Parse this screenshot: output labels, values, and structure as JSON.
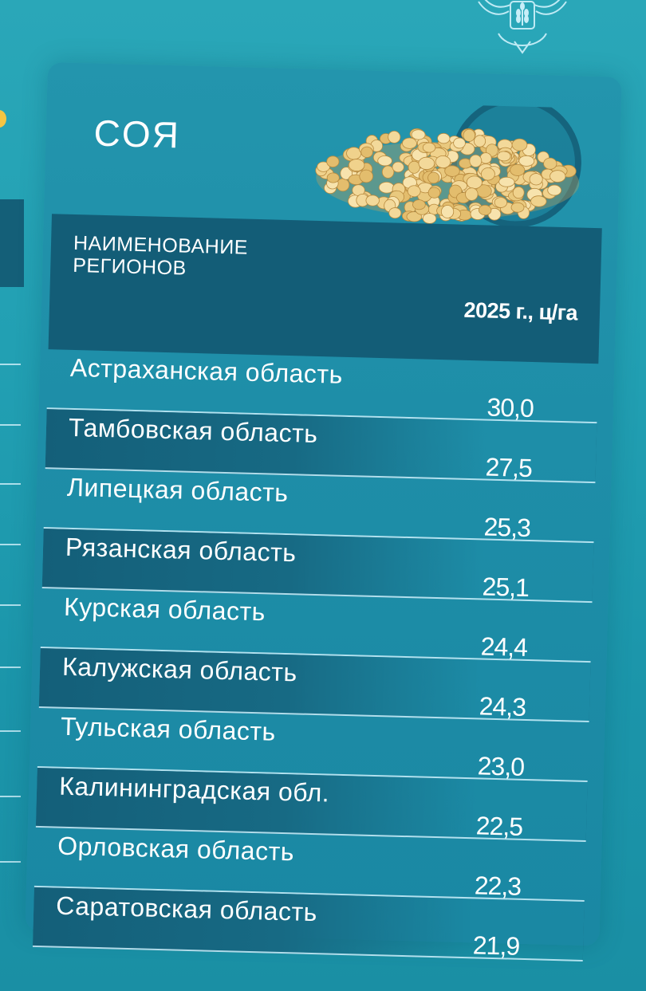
{
  "card": {
    "title": "СОЯ",
    "beans_icon": "soybeans-pile-image"
  },
  "emblem_icon": "ministry-emblem-icon",
  "table": {
    "header": {
      "region_label": "НАИМЕНОВАНИЕ РЕГИОНОВ",
      "value_label": "2025 г., ц/га"
    },
    "rows": [
      {
        "name": "Астраханская область",
        "value": "30,0"
      },
      {
        "name": "Тамбовская область",
        "value": "27,5"
      },
      {
        "name": "Липецкая область",
        "value": "25,3"
      },
      {
        "name": "Рязанская область",
        "value": "25,1"
      },
      {
        "name": "Курская область",
        "value": "24,4"
      },
      {
        "name": "Калужская область",
        "value": "24,3"
      },
      {
        "name": "Тульская область",
        "value": "23,0"
      },
      {
        "name": "Калининградская обл.",
        "value": "22,5"
      },
      {
        "name": "Орловская область",
        "value": "22,3"
      },
      {
        "name": "Саратовская область",
        "value": "21,9"
      }
    ]
  },
  "colors": {
    "background": "#22a0b3",
    "header_band": "#135d77",
    "row_shade": "#145f79",
    "text": "#ffffff"
  }
}
